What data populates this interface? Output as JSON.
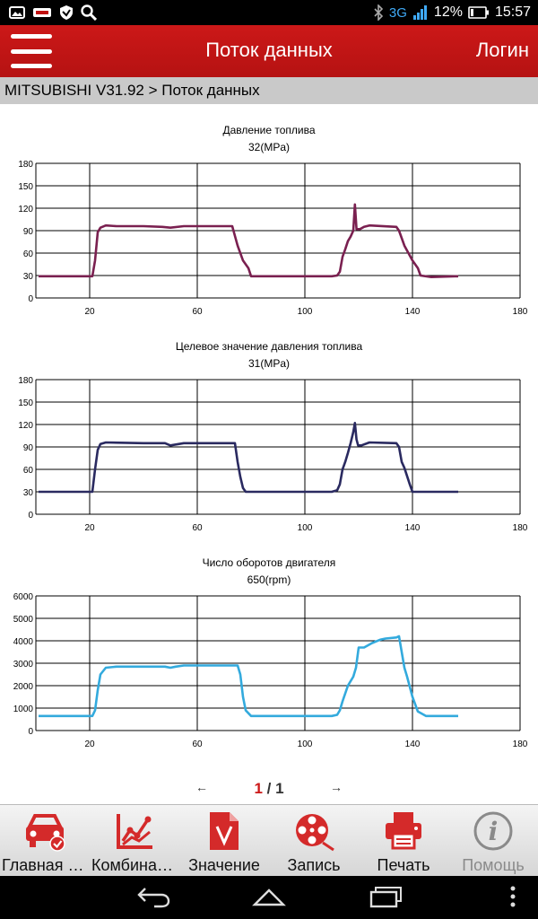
{
  "status_bar": {
    "network": "3G",
    "battery": "12%",
    "time": "15:57",
    "icons": [
      "gallery-icon",
      "car-icon",
      "shield-icon",
      "search-icon",
      "bluetooth-icon",
      "signal-icon",
      "battery-icon"
    ]
  },
  "header": {
    "title": "Поток данных",
    "login_label": "Логин",
    "accent": "#cc1818"
  },
  "breadcrumb": "MITSUBISHI V31.92 > Поток данных",
  "chart_data": [
    {
      "type": "line",
      "title": "Давление топлива",
      "subtitle": "32(MPa)",
      "color": "#7a2050",
      "xlim": [
        0,
        180
      ],
      "ylim": [
        0,
        180
      ],
      "x_ticks": [
        20,
        60,
        100,
        140,
        180
      ],
      "y_ticks": [
        0,
        30,
        60,
        90,
        120,
        150,
        180
      ],
      "grid": true,
      "x": [
        1,
        20,
        21,
        22,
        23,
        24,
        26,
        30,
        40,
        47,
        50,
        55,
        65,
        73,
        75,
        77,
        79,
        80,
        84,
        95,
        110,
        112,
        113,
        114,
        115,
        116,
        117,
        118,
        118.6,
        119.2,
        119.8,
        120.5,
        122,
        124,
        134,
        135,
        137,
        140,
        142,
        143,
        147,
        157
      ],
      "values": [
        29,
        29,
        29,
        50,
        88,
        94,
        97,
        96,
        96,
        95,
        94,
        96,
        96,
        96,
        70,
        50,
        40,
        29,
        29,
        29,
        29,
        30,
        35,
        55,
        65,
        76,
        82,
        90,
        125,
        92,
        92,
        92,
        95,
        97,
        95,
        90,
        70,
        50,
        40,
        30,
        28,
        29
      ]
    },
    {
      "type": "line",
      "title": "Целевое значение давления топлива",
      "subtitle": "31(MPa)",
      "color": "#2a2a60",
      "xlim": [
        0,
        180
      ],
      "ylim": [
        0,
        180
      ],
      "x_ticks": [
        20,
        60,
        100,
        140,
        180
      ],
      "y_ticks": [
        0,
        30,
        60,
        90,
        120,
        150,
        180
      ],
      "grid": true,
      "x": [
        1,
        20,
        21,
        22,
        23,
        24,
        26,
        40,
        48,
        50,
        55,
        65,
        74,
        75,
        76,
        77,
        78,
        90,
        110,
        112,
        113,
        114,
        115,
        116,
        117,
        118,
        118.6,
        119.2,
        119.8,
        121,
        124,
        134,
        135,
        136,
        137,
        139,
        140,
        157
      ],
      "values": [
        30,
        30,
        30,
        60,
        86,
        94,
        96,
        95,
        95,
        92,
        95,
        95,
        95,
        70,
        50,
        35,
        30,
        30,
        30,
        32,
        40,
        60,
        70,
        82,
        95,
        110,
        122,
        100,
        92,
        92,
        96,
        95,
        90,
        70,
        62,
        40,
        30,
        30
      ]
    },
    {
      "type": "line",
      "title": "Число оборотов двигателя",
      "subtitle": "650(rpm)",
      "color": "#33aadd",
      "xlim": [
        0,
        180
      ],
      "ylim": [
        0,
        6000
      ],
      "x_ticks": [
        20,
        60,
        100,
        140,
        180
      ],
      "y_ticks": [
        0,
        1000,
        2000,
        3000,
        4000,
        5000,
        6000
      ],
      "grid": true,
      "x": [
        1,
        20,
        21,
        22,
        23,
        24,
        26,
        30,
        40,
        48,
        50,
        52,
        55,
        65,
        75,
        76,
        77,
        78,
        80,
        90,
        110,
        112,
        113,
        114,
        116,
        118,
        119,
        120,
        121,
        122,
        125,
        128,
        130,
        134,
        135,
        136,
        137,
        138,
        140,
        142,
        145,
        157
      ],
      "values": [
        650,
        650,
        650,
        900,
        1800,
        2500,
        2800,
        2850,
        2850,
        2850,
        2800,
        2850,
        2900,
        2900,
        2900,
        2500,
        1500,
        900,
        650,
        650,
        650,
        700,
        900,
        1300,
        2000,
        2400,
        2800,
        3700,
        3700,
        3700,
        3900,
        4050,
        4100,
        4150,
        4200,
        3500,
        2800,
        2400,
        1500,
        850,
        650,
        650
      ]
    }
  ],
  "pager": {
    "prev": "←",
    "next": "→",
    "current": "1",
    "separator": " / ",
    "total": "1"
  },
  "toolbar": {
    "items": [
      {
        "label": "Главная с...",
        "icon": "car-check-icon"
      },
      {
        "label": "Комбинац...",
        "icon": "combined-chart-icon"
      },
      {
        "label": "Значение",
        "icon": "value-document-icon"
      },
      {
        "label": "Запись",
        "icon": "film-reel-icon"
      },
      {
        "label": "Печать",
        "icon": "printer-icon"
      },
      {
        "label": "Помощь",
        "icon": "help-icon"
      }
    ],
    "accent": "#d42a2a",
    "disabled_color": "#8a8a8a"
  },
  "nav_bar": {
    "icons": [
      "back-icon",
      "home-icon",
      "recents-icon",
      "more-icon"
    ]
  }
}
